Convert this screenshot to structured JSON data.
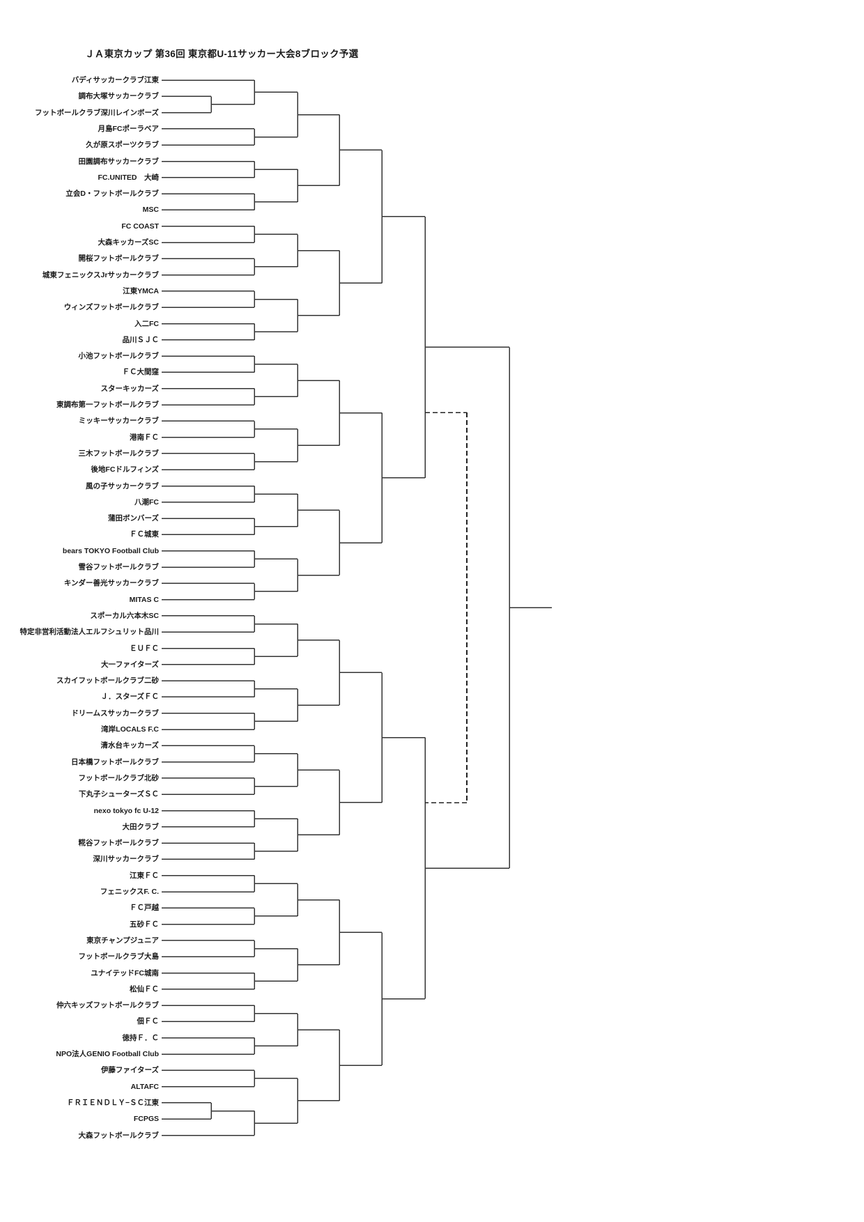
{
  "title": "ＪＡ東京カップ 第36回 東京都U-11サッカー大会8ブロック予選",
  "colors": {
    "background": "#ffffff",
    "line": "#333333",
    "text": "#1a1a1a"
  },
  "bracket": {
    "type": "single-elimination-tournament",
    "team_count": 66,
    "teams": [
      "バディサッカークラブ江東",
      "調布大塚サッカークラブ",
      "フットボールクラブ深川レインボーズ",
      "月島FCポーラベア",
      "久が原スポーツクラブ",
      "田園調布サッカークラブ",
      "FC.UNITED　大崎",
      "立会D・フットボールクラブ",
      "MSC",
      "FC COAST",
      "大森キッカーズSC",
      "開桜フットボールクラブ",
      "城東フェニックスJrサッカークラブ",
      "江東YMCA",
      "ウィンズフットボールクラブ",
      "入二FC",
      "品川ＳＪＣ",
      "小池フットボールクラブ",
      "ＦＣ大間窪",
      "スターキッカーズ",
      "東調布第一フットボールクラブ",
      "ミッキーサッカークラブ",
      "港南ＦＣ",
      "三木フットボールクラブ",
      "後地FCドルフィンズ",
      "風の子サッカークラブ",
      "八潮FC",
      "蒲田ボンバーズ",
      "ＦＣ城東",
      "bears TOKYO Football Club",
      "雪谷フットボールクラブ",
      "キンダー善光サッカークラブ",
      "MITAS C",
      "スポーカル六本木SC",
      "特定非営利活動法人エルフシュリット品川",
      "ＥＵＦＣ",
      "大一ファイターズ",
      "スカイフットボールクラブ二砂",
      "Ｊ．スターズＦＣ",
      "ドリームスサッカークラブ",
      "湾岸LOCALS F.C",
      "清水台キッカーズ",
      "日本橋フットボールクラブ",
      "フットボールクラブ北砂",
      "下丸子シューターズＳＣ",
      "nexo tokyo fc U-12",
      "大田クラブ",
      "糀谷フットボールクラブ",
      "深川サッカークラブ",
      "江東ＦＣ",
      "フェニックスF. C.",
      "ＦＣ戸越",
      "五砂ＦＣ",
      "東京チャンプジュニア",
      "フットボールクラブ大島",
      "ユナイテッドFC城南",
      "松仙ＦＣ",
      "仲六キッズフットボールクラブ",
      "佃ＦＣ",
      "徳持Ｆ．Ｃ",
      "NPO法人GENIO Football Club",
      "伊藤ファイターズ",
      "ALTAFC",
      "ＦＲＩＥＮＤＬＹ−ＳＣ江東",
      "FCPGS",
      "大森フットボールクラブ"
    ],
    "playin_pairs": [
      [
        1,
        2
      ],
      [
        63,
        64
      ]
    ],
    "rounds_after_playin": 6,
    "dashed_playoff_link": true
  }
}
